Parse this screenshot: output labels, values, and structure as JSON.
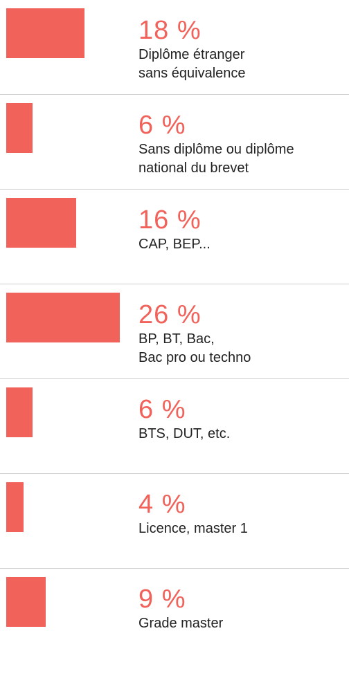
{
  "chart_data": {
    "type": "bar",
    "orientation": "horizontal",
    "color": "#f0625a",
    "categories": [
      "Diplôme étranger\nsans équivalence",
      "Sans diplôme ou diplôme\nnational du brevet",
      "CAP, BEP...",
      "BP, BT, Bac,\nBac pro ou techno",
      "BTS, DUT, etc.",
      "Licence, master 1",
      "Grade master"
    ],
    "values": [
      18,
      6,
      16,
      26,
      6,
      4,
      9
    ],
    "value_labels": [
      "18 %",
      "6 %",
      "16 %",
      "26 %",
      "6 %",
      "4 %",
      "9 %"
    ]
  }
}
